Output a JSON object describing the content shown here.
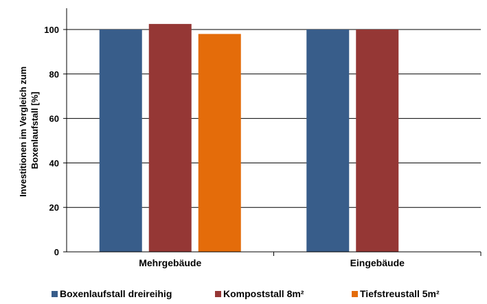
{
  "chart_data": {
    "type": "bar",
    "categories": [
      "Mehrgebäude",
      "Eingebäude"
    ],
    "series": [
      {
        "name": "Boxenlaufstall dreireihig",
        "values": [
          100,
          100
        ],
        "color": "#385D8A"
      },
      {
        "name": "Kompoststall 8m²",
        "values": [
          102.5,
          100
        ],
        "color": "#953735"
      },
      {
        "name": "Tiefstreustall 5m²",
        "values": [
          98,
          null
        ],
        "color": "#E46C0A"
      }
    ],
    "yticks": [
      "0",
      "20",
      "40",
      "60",
      "80",
      "100"
    ],
    "ylim": [
      0,
      110
    ],
    "ylabel": [
      "Investitionen im Vergleich zum",
      "Boxenlaufstall [%]"
    ],
    "grid": true,
    "legend_position": "bottom"
  }
}
